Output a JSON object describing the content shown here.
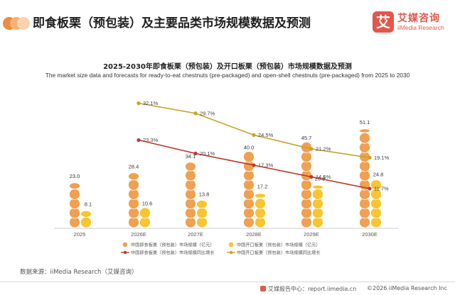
{
  "header": {
    "title": "即食板栗（预包装）及主要品类市场规模数据及预测",
    "dot_colors": [
      "#f08a3c",
      "#f5b078",
      "#f9d2b0"
    ]
  },
  "logo": {
    "mark": "艾",
    "cn": "艾媒咨询",
    "en": "iiMedia Research",
    "color": "#e3564a"
  },
  "chart_data": {
    "type": "bar+line",
    "title": "2025-2030年即食板栗（预包装）及开口板栗（预包装）市场规模数据及预测",
    "subtitle": "The market size data and forecasts for ready-to-eat chestnuts (pre-packaged) and open-shell chestnuts (pre-packaged) from 2025 to 2030",
    "categories": [
      "2025",
      "2026E",
      "2027E",
      "2028E",
      "2029E",
      "2030E"
    ],
    "bars": [
      {
        "name": "中国即食板栗（预包装）市场规模（亿元）",
        "color": "#f0a050",
        "values": [
          23.0,
          28.4,
          34.1,
          40.0,
          45.7,
          51.1
        ]
      },
      {
        "name": "中国开口板栗（预包装）市场规模（亿元）",
        "color": "#f7c531",
        "values": [
          8.1,
          10.6,
          13.8,
          17.2,
          20.8,
          24.8
        ]
      }
    ],
    "lines": [
      {
        "name": "中国即食板栗（预包装）市场规模同比增长",
        "color": "#c0392b",
        "values": [
          null,
          23.3,
          20.1,
          17.3,
          14.5,
          11.7
        ]
      },
      {
        "name": "中国开口板栗（预包装）市场规模同比增长",
        "color": "#c9a227",
        "values": [
          null,
          32.1,
          29.7,
          24.5,
          21.2,
          19.1
        ]
      }
    ],
    "value_labels": [
      "23.0",
      "28.4",
      "34.1",
      "40.0",
      "45.7",
      "51.1"
    ],
    "value_labels_2": [
      "8.1",
      "10.6",
      "13.8",
      "17.2",
      "20.8",
      "24.8"
    ],
    "rate_labels_1": [
      "",
      "23.3%",
      "20.1%",
      "17.3%",
      "14.5%",
      "11.7%"
    ],
    "rate_labels_2": [
      "",
      "32.1%",
      "29.7%",
      "24.5%",
      "21.2%",
      "19.1%"
    ],
    "legend": [
      "中国即食板栗（预包装）市场规模（亿元）",
      "中国开口板栗（预包装）市场规模（亿元）",
      "中国即食板栗（预包装）市场规模同比增长",
      "中国开口板栗（预包装）市场规模同比增长"
    ],
    "legend_position": "bottom"
  },
  "source": "数据来源：iiMedia Research（艾媒咨询）",
  "footer": {
    "left": "艾媒报告中心：report.iimedia.cn",
    "right": "©2026  iiMedia Research  Inc"
  }
}
